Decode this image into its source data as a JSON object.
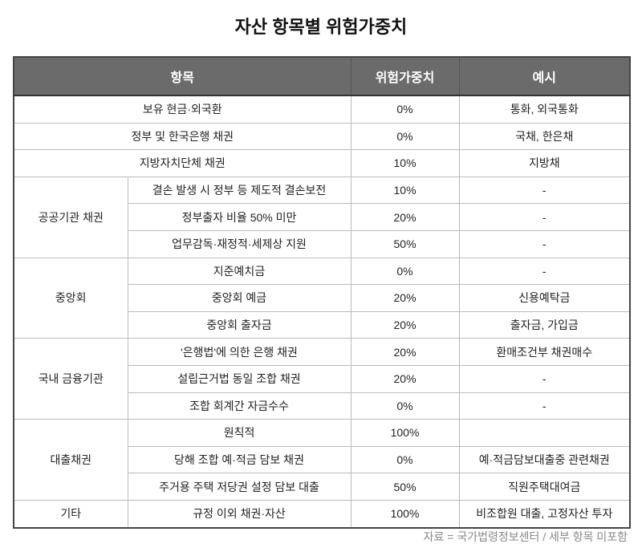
{
  "title": "자산 항목별 위험가중치",
  "table": {
    "header": [
      "항목",
      "위험가중치",
      "예시"
    ],
    "rows": [
      {
        "item": "보유 현금·외국환",
        "weight": "0%",
        "example": "통화, 외국통화"
      },
      {
        "item": "정부 및 한국은행 채권",
        "weight": "0%",
        "example": "국채, 한은채"
      },
      {
        "item": "지방자치단체 채권",
        "weight": "10%",
        "example": "지방채"
      },
      {
        "group": "공공기관 채권",
        "items": [
          {
            "item": "결손 발생 시 정부 등 제도적 결손보전",
            "weight": "10%",
            "example": "-"
          },
          {
            "item": "정부출자 비율 50% 미만",
            "weight": "20%",
            "example": "-"
          },
          {
            "item": "업무감독·재정적·세제상 지원",
            "weight": "50%",
            "example": "-"
          }
        ]
      },
      {
        "group": "중앙회",
        "items": [
          {
            "item": "지준예치금",
            "weight": "0%",
            "example": "-"
          },
          {
            "item": "중앙회 예금",
            "weight": "20%",
            "example": "신용예탁금"
          },
          {
            "item": "중앙회 출자금",
            "weight": "20%",
            "example": "출자금, 가입금"
          }
        ]
      },
      {
        "group": "국내 금융기관",
        "items": [
          {
            "item": "'은행법'에 의한 은행 채권",
            "weight": "20%",
            "example": "환매조건부 채권매수"
          },
          {
            "item": "설립근거법 동일 조합 채권",
            "weight": "20%",
            "example": "-"
          },
          {
            "item": "조합 회계간 자금수수",
            "weight": "0%",
            "example": "-"
          }
        ]
      },
      {
        "group": "대출채권",
        "items": [
          {
            "item": "원칙적",
            "weight": "100%"
          },
          {
            "item": "당해 조합 예·적금 담보 채권",
            "weight": "0%",
            "example": "예·적금담보대출중 관련채권"
          },
          {
            "item": "주거용 주택 저당권 설정 담보 대출",
            "weight": "50%",
            "example": "직원주택대여금"
          }
        ]
      },
      {
        "group": "기타",
        "items": [
          {
            "item": "규정 이외 채권·자산",
            "weight": "100%",
            "example": "비조합원 대출, 고정자산 투자"
          }
        ]
      }
    ]
  },
  "source": "자료 = 국가법령정보센터 / 세부 항목 미포함"
}
